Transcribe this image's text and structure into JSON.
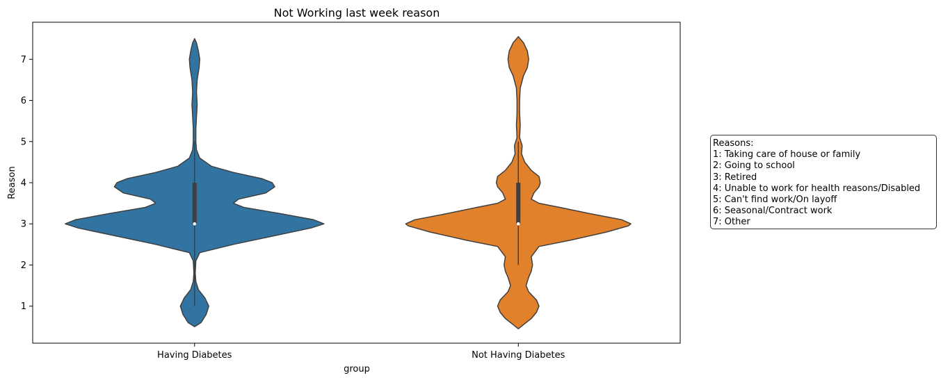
{
  "chart_data": {
    "type": "violin",
    "title": "Not Working last week reason",
    "xlabel": "group",
    "ylabel": "Reason",
    "categories": [
      "Having Diabetes",
      "Not Having Diabetes"
    ],
    "ylim": [
      0.1,
      7.9
    ],
    "yticks": [
      1,
      2,
      3,
      4,
      5,
      6,
      7
    ],
    "grid": false,
    "colors": [
      "#3274a1",
      "#e1812c"
    ],
    "series": [
      {
        "category": "Having Diabetes",
        "color": "#3274a1",
        "density": [
          [
            0.5,
            0
          ],
          [
            0.6,
            0.05
          ],
          [
            0.8,
            0.09
          ],
          [
            1.0,
            0.11
          ],
          [
            1.2,
            0.08
          ],
          [
            1.4,
            0.03
          ],
          [
            1.6,
            0.01
          ],
          [
            1.8,
            0.005
          ],
          [
            2.1,
            0.01
          ],
          [
            2.3,
            0.04
          ],
          [
            2.5,
            0.3
          ],
          [
            2.7,
            0.6
          ],
          [
            2.9,
            0.9
          ],
          [
            3.0,
            1.0
          ],
          [
            3.1,
            0.92
          ],
          [
            3.25,
            0.66
          ],
          [
            3.4,
            0.38
          ],
          [
            3.5,
            0.3
          ],
          [
            3.6,
            0.34
          ],
          [
            3.75,
            0.55
          ],
          [
            3.9,
            0.62
          ],
          [
            4.0,
            0.6
          ],
          [
            4.1,
            0.52
          ],
          [
            4.25,
            0.3
          ],
          [
            4.4,
            0.13
          ],
          [
            4.6,
            0.04
          ],
          [
            4.8,
            0.015
          ],
          [
            5.0,
            0.01
          ],
          [
            5.3,
            0.01
          ],
          [
            5.6,
            0.015
          ],
          [
            5.9,
            0.02
          ],
          [
            6.2,
            0.015
          ],
          [
            6.5,
            0.02
          ],
          [
            6.8,
            0.035
          ],
          [
            7.0,
            0.04
          ],
          [
            7.2,
            0.03
          ],
          [
            7.4,
            0.015
          ],
          [
            7.5,
            0
          ]
        ],
        "box": {
          "q1": 3,
          "median": 3,
          "q3": 4,
          "whisker_low": 1,
          "whisker_high": 5
        }
      },
      {
        "category": "Not Having Diabetes",
        "color": "#e1812c",
        "density": [
          [
            0.45,
            0
          ],
          [
            0.55,
            0.04
          ],
          [
            0.7,
            0.1
          ],
          [
            0.85,
            0.14
          ],
          [
            1.0,
            0.16
          ],
          [
            1.15,
            0.14
          ],
          [
            1.35,
            0.08
          ],
          [
            1.5,
            0.06
          ],
          [
            1.7,
            0.08
          ],
          [
            1.85,
            0.1
          ],
          [
            2.0,
            0.11
          ],
          [
            2.2,
            0.1
          ],
          [
            2.45,
            0.16
          ],
          [
            2.6,
            0.4
          ],
          [
            2.8,
            0.68
          ],
          [
            2.95,
            0.85
          ],
          [
            3.0,
            0.87
          ],
          [
            3.1,
            0.8
          ],
          [
            3.25,
            0.55
          ],
          [
            3.4,
            0.32
          ],
          [
            3.5,
            0.16
          ],
          [
            3.6,
            0.1
          ],
          [
            3.75,
            0.12
          ],
          [
            3.9,
            0.16
          ],
          [
            4.0,
            0.17
          ],
          [
            4.15,
            0.16
          ],
          [
            4.3,
            0.1
          ],
          [
            4.5,
            0.05
          ],
          [
            4.7,
            0.025
          ],
          [
            4.9,
            0.03
          ],
          [
            5.1,
            0.01
          ],
          [
            5.4,
            0.015
          ],
          [
            5.7,
            0.01
          ],
          [
            6.0,
            0.01
          ],
          [
            6.3,
            0.015
          ],
          [
            6.6,
            0.04
          ],
          [
            6.8,
            0.07
          ],
          [
            7.0,
            0.08
          ],
          [
            7.2,
            0.07
          ],
          [
            7.4,
            0.04
          ],
          [
            7.55,
            0
          ]
        ],
        "box": {
          "q1": 3,
          "median": 3,
          "q3": 4,
          "whisker_low": 2,
          "whisker_high": 5
        }
      }
    ]
  },
  "note": {
    "lines": [
      "Reasons:",
      "1: Taking care of house or family",
      "2: Going to school",
      "3: Retired",
      "4: Unable to work for health reasons/Disabled",
      "5: Can't find work/On layoff",
      "6: Seasonal/Contract work",
      "7: Other"
    ]
  }
}
